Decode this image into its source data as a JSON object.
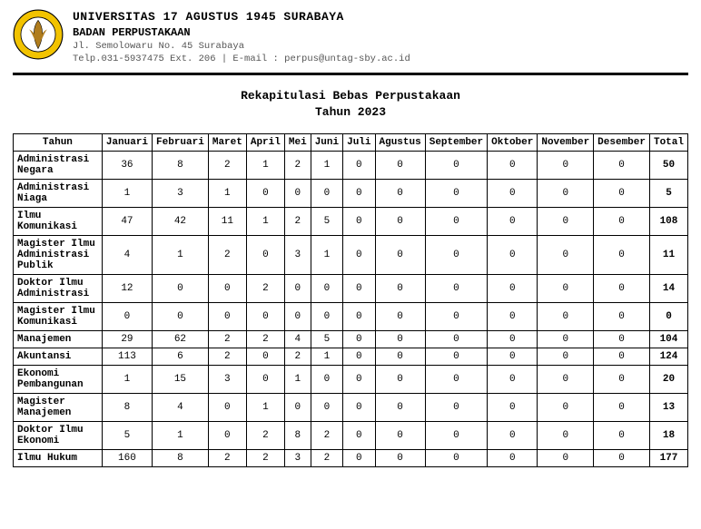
{
  "header": {
    "university": "UNIVERSITAS 17 AGUSTUS 1945 SURABAYA",
    "unit": "BADAN PERPUSTAKAAN",
    "address": "Jl. Semolowaru No. 45 Surabaya",
    "contact": "Telp.031-5937475 Ext. 206 | E-mail : perpus@untag-sby.ac.id"
  },
  "title": {
    "line1": "Rekapitulasi Bebas Perpustakaan",
    "line2": "Tahun 2023"
  },
  "table": {
    "columns": [
      "Tahun",
      "Januari",
      "Februari",
      "Maret",
      "April",
      "Mei",
      "Juni",
      "Juli",
      "Agustus",
      "September",
      "Oktober",
      "November",
      "Desember",
      "Total"
    ],
    "rows": [
      {
        "label": "Administrasi Negara",
        "values": [
          36,
          8,
          2,
          1,
          2,
          1,
          0,
          0,
          0,
          0,
          0,
          0
        ],
        "total": 50
      },
      {
        "label": "Administrasi Niaga",
        "values": [
          1,
          3,
          1,
          0,
          0,
          0,
          0,
          0,
          0,
          0,
          0,
          0
        ],
        "total": 5
      },
      {
        "label": "Ilmu Komunikasi",
        "values": [
          47,
          42,
          11,
          1,
          2,
          5,
          0,
          0,
          0,
          0,
          0,
          0
        ],
        "total": 108
      },
      {
        "label": "Magister Ilmu Administrasi Publik",
        "values": [
          4,
          1,
          2,
          0,
          3,
          1,
          0,
          0,
          0,
          0,
          0,
          0
        ],
        "total": 11
      },
      {
        "label": "Doktor Ilmu Administrasi",
        "values": [
          12,
          0,
          0,
          2,
          0,
          0,
          0,
          0,
          0,
          0,
          0,
          0
        ],
        "total": 14
      },
      {
        "label": "Magister Ilmu Komunikasi",
        "values": [
          0,
          0,
          0,
          0,
          0,
          0,
          0,
          0,
          0,
          0,
          0,
          0
        ],
        "total": 0
      },
      {
        "label": "Manajemen",
        "values": [
          29,
          62,
          2,
          2,
          4,
          5,
          0,
          0,
          0,
          0,
          0,
          0
        ],
        "total": 104
      },
      {
        "label": "Akuntansi",
        "values": [
          113,
          6,
          2,
          0,
          2,
          1,
          0,
          0,
          0,
          0,
          0,
          0
        ],
        "total": 124
      },
      {
        "label": "Ekonomi Pembangunan",
        "values": [
          1,
          15,
          3,
          0,
          1,
          0,
          0,
          0,
          0,
          0,
          0,
          0
        ],
        "total": 20
      },
      {
        "label": "Magister Manajemen",
        "values": [
          8,
          4,
          0,
          1,
          0,
          0,
          0,
          0,
          0,
          0,
          0,
          0
        ],
        "total": 13
      },
      {
        "label": "Doktor Ilmu Ekonomi",
        "values": [
          5,
          1,
          0,
          2,
          8,
          2,
          0,
          0,
          0,
          0,
          0,
          0
        ],
        "total": 18
      },
      {
        "label": "Ilmu Hukum",
        "values": [
          160,
          8,
          2,
          2,
          3,
          2,
          0,
          0,
          0,
          0,
          0,
          0
        ],
        "total": 177
      }
    ]
  },
  "logo": {
    "outer_color": "#f2c300",
    "inner_color": "#ffffff",
    "stroke": "#000000",
    "leaf_color": "#b07d1e"
  }
}
